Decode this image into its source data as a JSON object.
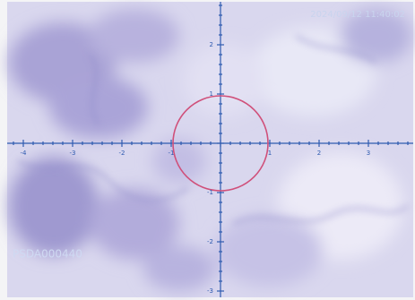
{
  "timestamp": "2024/09/12 11:40:02",
  "specimen_id": "PSDA000440",
  "scale": {
    "x_labels": [
      "-4",
      "-3",
      "-2",
      "-1",
      "1",
      "2",
      "3"
    ],
    "y_labels": [
      "2",
      "1",
      "-1",
      "-2",
      "-3"
    ]
  }
}
